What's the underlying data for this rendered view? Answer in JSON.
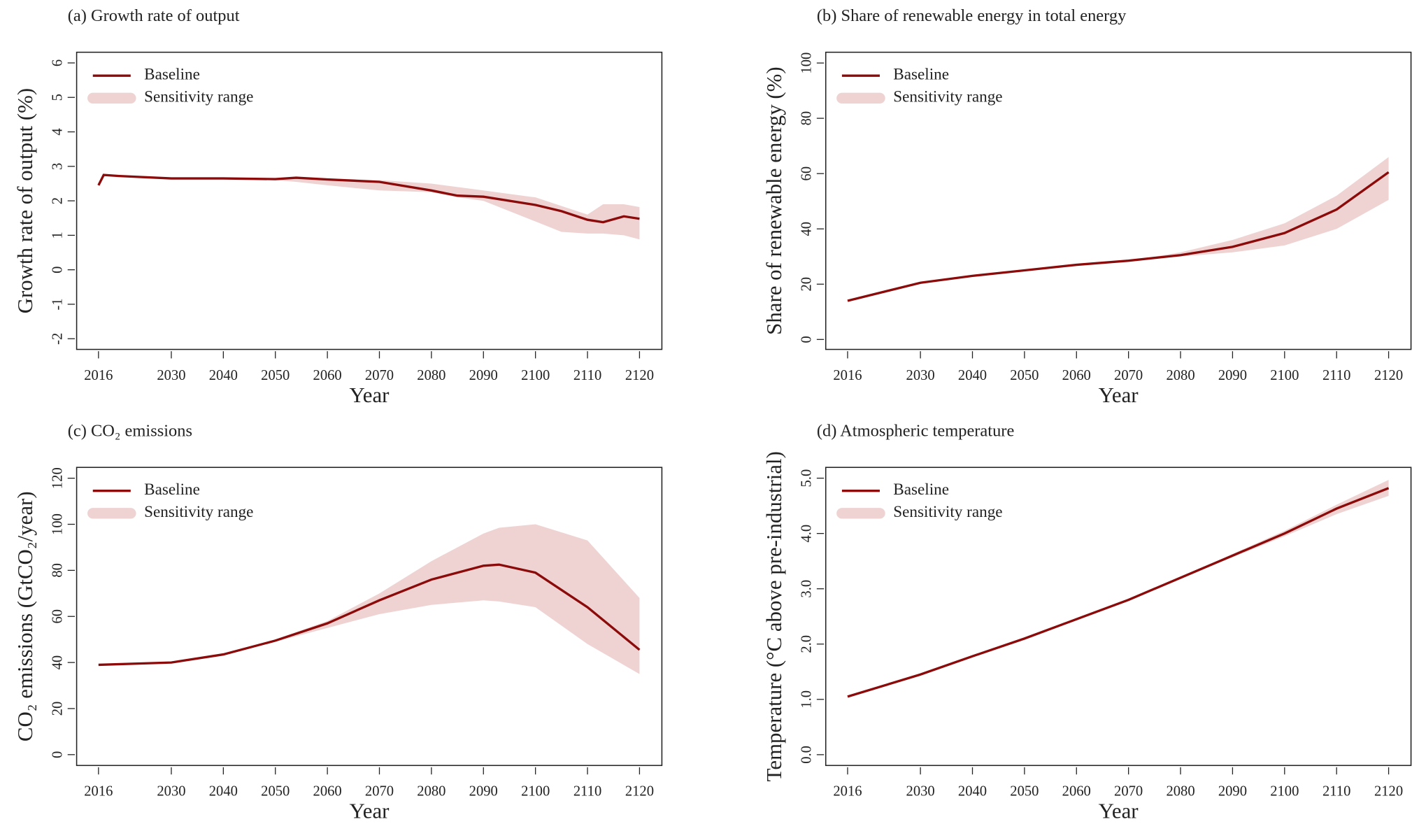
{
  "chart_data": [
    {
      "type": "line",
      "title": "(a) Growth rate of output",
      "xlabel": "Year",
      "ylabel": "Growth rate of output (%)",
      "x": [
        2016,
        2017,
        2020,
        2030,
        2040,
        2050,
        2054,
        2060,
        2070,
        2080,
        2085,
        2090,
        2100,
        2105,
        2110,
        2113,
        2117,
        2120
      ],
      "series": [
        {
          "name": "Baseline",
          "color": "#8b0a0a",
          "values": [
            2.45,
            2.75,
            2.72,
            2.65,
            2.65,
            2.63,
            2.67,
            2.62,
            2.55,
            2.3,
            2.15,
            2.12,
            1.88,
            1.7,
            1.45,
            1.38,
            1.55,
            1.48
          ]
        },
        {
          "name": "Sensitivity range",
          "color": "#efd3d3",
          "lower": [
            2.45,
            2.75,
            2.72,
            2.65,
            2.65,
            2.6,
            2.55,
            2.45,
            2.3,
            2.25,
            2.1,
            2.0,
            1.4,
            1.1,
            1.05,
            1.05,
            1.0,
            0.88
          ],
          "upper": [
            2.45,
            2.75,
            2.72,
            2.65,
            2.65,
            2.65,
            2.67,
            2.65,
            2.6,
            2.5,
            2.4,
            2.3,
            2.1,
            1.85,
            1.6,
            1.9,
            1.9,
            1.82
          ]
        }
      ],
      "xlim": [
        2011.8,
        2124.3
      ],
      "ylim": [
        -2.31,
        6.31
      ],
      "xticks": [
        2016,
        2030,
        2040,
        2050,
        2060,
        2070,
        2080,
        2090,
        2100,
        2110,
        2120
      ],
      "yticks": [
        -2,
        -1,
        0,
        1,
        2,
        3,
        4,
        5,
        6
      ],
      "legend": "upper left"
    },
    {
      "type": "line",
      "title": "(b) Share of renewable energy in total energy",
      "xlabel": "Year",
      "ylabel": "Share of renewable energy (%)",
      "x": [
        2016,
        2030,
        2040,
        2050,
        2060,
        2070,
        2080,
        2090,
        2100,
        2110,
        2120
      ],
      "series": [
        {
          "name": "Baseline",
          "color": "#8b0a0a",
          "values": [
            14,
            20.5,
            23,
            25,
            27,
            28.5,
            30.5,
            33.5,
            38.5,
            47,
            60.5
          ]
        },
        {
          "name": "Sensitivity range",
          "color": "#efd3d3",
          "lower": [
            14,
            20.5,
            23,
            25,
            27,
            28.5,
            30,
            31.5,
            34,
            40,
            50.5
          ],
          "upper": [
            14,
            20.5,
            23,
            25,
            27,
            28.5,
            31.5,
            36,
            42,
            52,
            66
          ]
        }
      ],
      "xlim": [
        2011.8,
        2124.3
      ],
      "ylim": [
        -3.6,
        103.9
      ],
      "xticks": [
        2016,
        2030,
        2040,
        2050,
        2060,
        2070,
        2080,
        2090,
        2100,
        2110,
        2120
      ],
      "yticks": [
        0,
        20,
        40,
        60,
        80,
        100
      ],
      "legend": "upper left"
    },
    {
      "type": "line",
      "title": "(c) CO₂ emissions",
      "xlabel": "Year",
      "ylabel": "CO₂ emissions (GtCO₂/year)",
      "x": [
        2016,
        2030,
        2040,
        2050,
        2060,
        2070,
        2080,
        2090,
        2093,
        2100,
        2110,
        2120
      ],
      "series": [
        {
          "name": "Baseline",
          "color": "#8b0a0a",
          "values": [
            39,
            40,
            43.5,
            49.5,
            57,
            67,
            76,
            82,
            82.5,
            79,
            64,
            45.5
          ]
        },
        {
          "name": "Sensitivity range",
          "color": "#efd3d3",
          "lower": [
            39,
            40,
            43.5,
            49,
            55,
            61,
            65,
            67,
            66.5,
            64,
            48,
            35
          ],
          "upper": [
            39,
            40,
            43.5,
            50,
            58,
            70,
            84,
            96,
            98.5,
            100,
            93,
            68
          ]
        }
      ],
      "xlim": [
        2011.8,
        2124.3
      ],
      "ylim": [
        -4.7,
        124.7
      ],
      "xticks": [
        2016,
        2030,
        2040,
        2050,
        2060,
        2070,
        2080,
        2090,
        2100,
        2110,
        2120
      ],
      "yticks": [
        0,
        20,
        40,
        60,
        80,
        100,
        120
      ],
      "legend": "upper left"
    },
    {
      "type": "line",
      "title": "(d) Atmospheric temperature",
      "xlabel": "Year",
      "ylabel": "Temperature (°C above pre-industrial)",
      "x": [
        2016,
        2030,
        2040,
        2050,
        2060,
        2070,
        2080,
        2090,
        2100,
        2110,
        2120
      ],
      "series": [
        {
          "name": "Baseline",
          "color": "#8b0a0a",
          "values": [
            1.05,
            1.45,
            1.78,
            2.1,
            2.45,
            2.8,
            3.2,
            3.6,
            4.0,
            4.45,
            4.82
          ]
        },
        {
          "name": "Sensitivity range",
          "color": "#efd3d3",
          "lower": [
            1.05,
            1.45,
            1.78,
            2.1,
            2.45,
            2.8,
            3.2,
            3.57,
            3.95,
            4.35,
            4.68
          ],
          "upper": [
            1.05,
            1.45,
            1.78,
            2.1,
            2.45,
            2.8,
            3.2,
            3.63,
            4.05,
            4.52,
            4.97
          ]
        }
      ],
      "xlim": [
        2011.8,
        2124.3
      ],
      "ylim": [
        -0.195,
        5.195
      ],
      "xticks": [
        2016,
        2030,
        2040,
        2050,
        2060,
        2070,
        2080,
        2090,
        2100,
        2110,
        2120
      ],
      "yticks": [
        {
          "value": 0,
          "label": "0.0"
        },
        {
          "value": 1,
          "label": "1.0"
        },
        {
          "value": 2,
          "label": "2.0"
        },
        {
          "value": 3,
          "label": "3.0"
        },
        {
          "value": 4,
          "label": "4.0"
        },
        {
          "value": 5,
          "label": "5.0"
        }
      ],
      "legend": "upper left"
    }
  ]
}
